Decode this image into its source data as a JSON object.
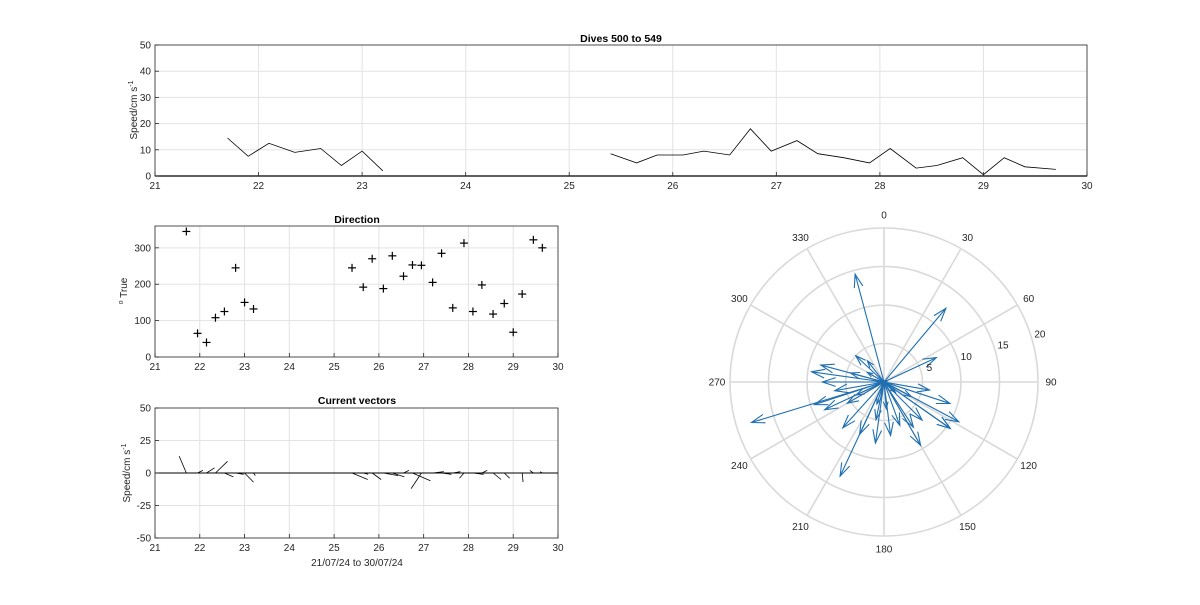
{
  "figure": {
    "background": "#ffffff",
    "vector_color": "#1f6fb0"
  },
  "chart_data": [
    {
      "id": "speed",
      "type": "line",
      "title": "Dives 500 to 549",
      "ylabel_main": "Speed/cm s",
      "ylabel_sup": "-1",
      "xlim": [
        21,
        30
      ],
      "ylim": [
        0,
        50
      ],
      "xticks": [
        21,
        22,
        23,
        24,
        25,
        26,
        27,
        28,
        29,
        30
      ],
      "yticks": [
        0,
        10,
        20,
        30,
        40,
        50
      ],
      "segments": [
        {
          "x": [
            21.7,
            21.9,
            22.1,
            22.35,
            22.6,
            22.8,
            23.0,
            23.2
          ],
          "y": [
            14.5,
            7.5,
            12.5,
            9.0,
            10.5,
            4.0,
            9.5,
            2.0
          ]
        },
        {
          "x": [
            25.4,
            25.65,
            25.85,
            26.1,
            26.3,
            26.55,
            26.75,
            26.95,
            27.2,
            27.4,
            27.65,
            27.9,
            28.1,
            28.35,
            28.55,
            28.8,
            29.0,
            29.2,
            29.4,
            29.7
          ],
          "y": [
            8.5,
            5.0,
            8.0,
            8.0,
            9.5,
            8.0,
            18.0,
            9.5,
            13.5,
            8.5,
            7.0,
            5.0,
            10.5,
            3.0,
            4.0,
            7.0,
            0.5,
            7.0,
            3.5,
            2.5
          ]
        }
      ]
    },
    {
      "id": "direction",
      "type": "scatter",
      "title": "Direction",
      "ylabel_sup": "o",
      "ylabel_main": " True",
      "xlim": [
        21,
        30
      ],
      "ylim": [
        0,
        360
      ],
      "xticks": [
        21,
        22,
        23,
        24,
        25,
        26,
        27,
        28,
        29,
        30
      ],
      "yticks": [
        0,
        100,
        200,
        300
      ],
      "points": {
        "x": [
          21.7,
          21.95,
          22.15,
          22.35,
          22.55,
          22.8,
          23.0,
          23.2,
          25.4,
          25.65,
          25.85,
          26.1,
          26.3,
          26.55,
          26.75,
          26.95,
          27.2,
          27.4,
          27.65,
          27.9,
          28.1,
          28.3,
          28.55,
          28.8,
          29.0,
          29.2,
          29.45,
          29.65
        ],
        "y": [
          345,
          65,
          40,
          108,
          125,
          245,
          150,
          132,
          245,
          192,
          270,
          188,
          278,
          222,
          253,
          252,
          205,
          285,
          135,
          313,
          125,
          198,
          118,
          147,
          68,
          173,
          322,
          300
        ]
      }
    },
    {
      "id": "vectors",
      "type": "quiver",
      "title": "Current vectors",
      "ylabel_main": "Speed/cm s",
      "ylabel_sup": "-1",
      "xlabel": "21/07/24 to 30/07/24",
      "xlim": [
        21,
        30
      ],
      "ylim": [
        -50,
        50
      ],
      "xticks": [
        21,
        22,
        23,
        24,
        25,
        26,
        27,
        28,
        29,
        30
      ],
      "yticks": [
        -50,
        -25,
        0,
        25,
        50
      ],
      "sticks": {
        "x": [
          21.7,
          21.95,
          22.15,
          22.35,
          22.55,
          22.8,
          23.0,
          23.2,
          25.4,
          25.65,
          25.85,
          26.1,
          26.3,
          26.55,
          26.75,
          26.95,
          27.2,
          27.4,
          27.65,
          27.9,
          28.1,
          28.3,
          28.55,
          28.8,
          29.0,
          29.2,
          29.45,
          29.65
        ],
        "dx": [
          -0.16,
          0.12,
          0.18,
          0.27,
          0.2,
          0.18,
          0.2,
          0.04,
          0.35,
          0.11,
          0.2,
          0.33,
          0.27,
          0.12,
          0.4,
          -0.23,
          0.25,
          0.22,
          0.17,
          -0.1,
          0.24,
          0.12,
          0.18,
          0.12,
          0.02,
          0.02,
          -0.08,
          -0.05
        ],
        "dy": [
          13,
          2,
          4,
          9,
          -3,
          -1,
          -7,
          -2,
          -5,
          -1,
          -5,
          -2,
          -3,
          2,
          -6,
          -12,
          1,
          -1,
          1,
          -4,
          -1,
          2,
          -5,
          -4,
          0,
          -7,
          2,
          1
        ]
      }
    },
    {
      "id": "polar",
      "type": "compass",
      "angle_labels": [
        "0",
        "30",
        "60",
        "90",
        "120",
        "150",
        "180",
        "210",
        "240",
        "270",
        "300",
        "330"
      ],
      "r_labels": [
        "5",
        "10",
        "15",
        "20"
      ],
      "rmax": 20,
      "vectors": {
        "direction": [
          345,
          65,
          40,
          108,
          125,
          245,
          150,
          132,
          245,
          192,
          270,
          188,
          278,
          222,
          253,
          252,
          205,
          285,
          135,
          313,
          125,
          198,
          118,
          147,
          68,
          173,
          322,
          300,
          118,
          100,
          260,
          285,
          205,
          160,
          175,
          240
        ],
        "speed": [
          14.5,
          7.5,
          12.5,
          9.0,
          10.5,
          4.0,
          9.5,
          2.0,
          8.5,
          5.0,
          8.0,
          8.0,
          9.5,
          8.0,
          18.0,
          9.5,
          13.5,
          8.5,
          7.0,
          5.0,
          10.5,
          3.0,
          4.0,
          7.0,
          0.5,
          7.0,
          3.5,
          2.5,
          11.0,
          6.0,
          6.5,
          4.5,
          7.5,
          6.0,
          3.5,
          5.5
        ]
      }
    }
  ]
}
